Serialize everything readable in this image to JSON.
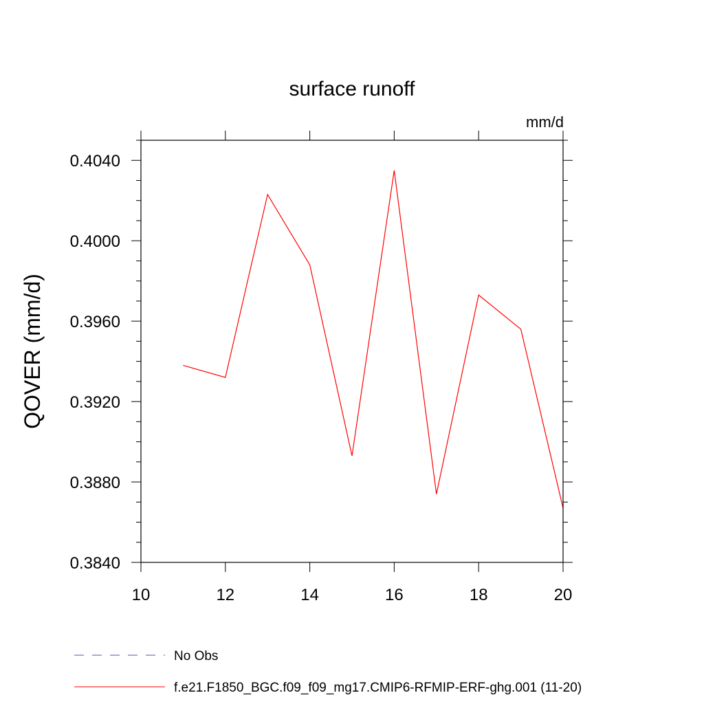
{
  "chart_data": {
    "type": "line",
    "title": "surface runoff",
    "units_label": "mm/d",
    "xlabel": "",
    "ylabel": "QOVER  (mm/d)",
    "xlim": [
      10,
      20
    ],
    "ylim": [
      0.384,
      0.405
    ],
    "x_ticks": [
      {
        "value": 10,
        "label": "10"
      },
      {
        "value": 12,
        "label": "12"
      },
      {
        "value": 14,
        "label": "14"
      },
      {
        "value": 16,
        "label": "16"
      },
      {
        "value": 18,
        "label": "18"
      },
      {
        "value": 20,
        "label": "20"
      }
    ],
    "y_ticks": [
      {
        "value": 0.384,
        "label": "0.3840"
      },
      {
        "value": 0.388,
        "label": "0.3880"
      },
      {
        "value": 0.392,
        "label": "0.3920"
      },
      {
        "value": 0.396,
        "label": "0.3960"
      },
      {
        "value": 0.4,
        "label": "0.4000"
      },
      {
        "value": 0.404,
        "label": "0.4040"
      }
    ],
    "grid": false,
    "legend_position": "bottom",
    "series": [
      {
        "name": "No Obs",
        "color": "#5a4fa0",
        "dash": "dashed",
        "x": [],
        "y": []
      },
      {
        "name": "f.e21.F1850_BGC.f09_f09_mg17.CMIP6-RFMIP-ERF-ghg.001 (11-20)",
        "color": "#ff0000",
        "dash": "solid",
        "x": [
          11,
          12,
          13,
          14,
          15,
          16,
          17,
          18,
          19,
          20
        ],
        "y": [
          0.3938,
          0.3932,
          0.4023,
          0.3988,
          0.3893,
          0.4035,
          0.3874,
          0.3973,
          0.3956,
          0.3867
        ]
      }
    ]
  }
}
